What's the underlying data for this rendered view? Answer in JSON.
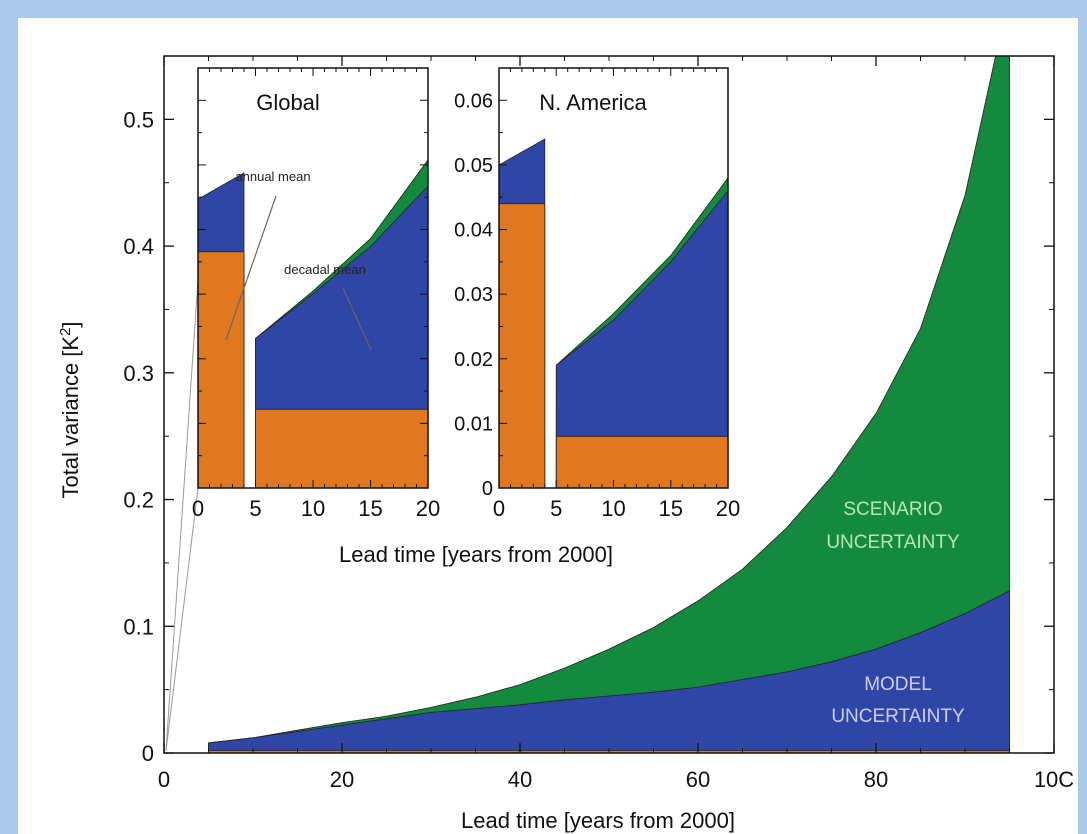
{
  "chart_data": [
    {
      "type": "area",
      "xlabel": "Lead time  [years from 2000]",
      "ylabel": "Total variance  [K",
      "ylabel_sup": "2",
      "ylabel_end": "]",
      "xlim": [
        0,
        100
      ],
      "ylim": [
        0,
        0.55
      ],
      "xticks": [
        "0",
        "20",
        "40",
        "60",
        "80",
        "10C"
      ],
      "yticks": [
        "0",
        "0.1",
        "0.2",
        "0.3",
        "0.4",
        "0.5"
      ],
      "x": [
        5,
        10,
        15,
        20,
        25,
        30,
        35,
        40,
        45,
        50,
        55,
        60,
        65,
        70,
        75,
        80,
        85,
        90,
        95
      ],
      "series": [
        {
          "name": "",
          "color": "#e07820",
          "values": [
            0.002,
            0.002,
            0.002,
            0.002,
            0.002,
            0.002,
            0.002,
            0.002,
            0.002,
            0.002,
            0.002,
            0.002,
            0.002,
            0.002,
            0.002,
            0.002,
            0.002,
            0.002,
            0.002
          ]
        },
        {
          "name": "MODEL UNCERTAINTY",
          "color": "#2f46a6",
          "values": [
            0.008,
            0.012,
            0.017,
            0.022,
            0.027,
            0.032,
            0.035,
            0.038,
            0.042,
            0.045,
            0.048,
            0.052,
            0.058,
            0.064,
            0.072,
            0.082,
            0.095,
            0.11,
            0.128
          ]
        },
        {
          "name": "SCENARIO UNCERTAINTY",
          "color": "#138a3d",
          "values": [
            0.008,
            0.012,
            0.018,
            0.024,
            0.029,
            0.036,
            0.044,
            0.054,
            0.067,
            0.082,
            0.099,
            0.12,
            0.145,
            0.178,
            0.218,
            0.268,
            0.335,
            0.44,
            0.6
          ]
        }
      ],
      "labels": {
        "scenario_line1": "SCENARIO",
        "scenario_line2": "UNCERTAINTY",
        "model_line1": "MODEL",
        "model_line2": "UNCERTAINTY"
      }
    },
    {
      "type": "area",
      "title": "Global",
      "xlim": [
        0,
        20
      ],
      "xticks": [
        "0",
        "5",
        "10",
        "15",
        "20"
      ],
      "annual_mean": {
        "x": [
          0,
          4
        ],
        "internal": 0.295,
        "model": 0.315,
        "model_end": 0.325
      },
      "decadal_x": [
        5,
        10,
        15,
        20
      ],
      "decadal_internal": [
        0.235,
        0.235,
        0.235,
        0.235
      ],
      "decadal_model": [
        0.262,
        0.279,
        0.297,
        0.32
      ],
      "decadal_scenario": [
        0.262,
        0.28,
        0.3,
        0.33
      ],
      "annotations": {
        "annual": "annual mean",
        "decadal": "decadal mean"
      }
    },
    {
      "type": "area",
      "title": "N. America",
      "xlabel": "Lead time  [years from 2000]",
      "xlim": [
        0,
        20
      ],
      "ylim": [
        0,
        0.065
      ],
      "xticks": [
        "0",
        "5",
        "10",
        "15",
        "20"
      ],
      "yticks": [
        "0",
        "0.01",
        "0.02",
        "0.03",
        "0.04",
        "0.05",
        "0.06"
      ],
      "annual_mean": {
        "x": [
          0,
          4
        ],
        "internal": 0.044,
        "model": 0.05,
        "model_end": 0.054
      },
      "decadal_x": [
        5,
        10,
        15,
        20
      ],
      "decadal_internal": [
        0.008,
        0.008,
        0.008,
        0.008
      ],
      "decadal_model": [
        0.019,
        0.026,
        0.035,
        0.046
      ],
      "decadal_scenario": [
        0.019,
        0.027,
        0.036,
        0.048
      ]
    }
  ]
}
